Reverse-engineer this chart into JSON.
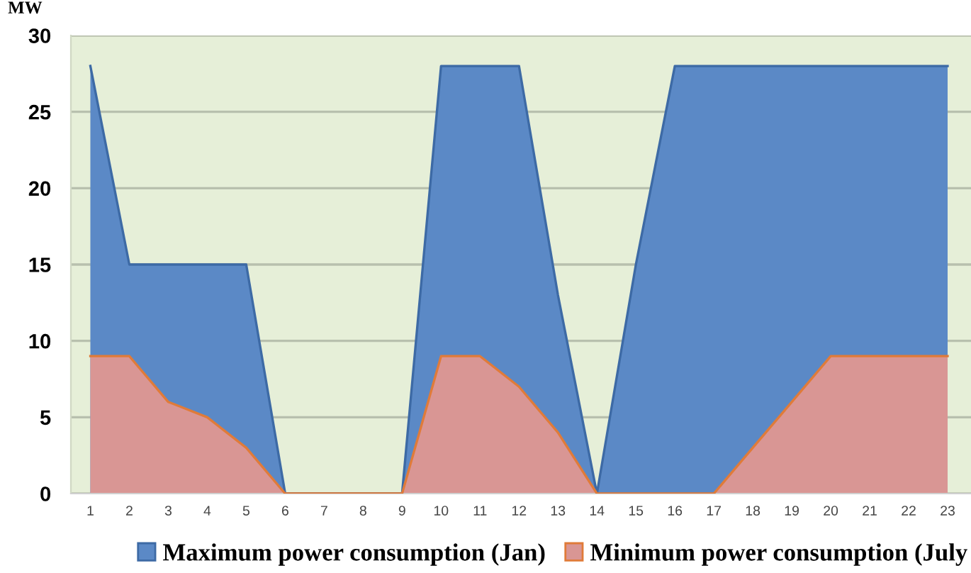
{
  "chart_data": {
    "type": "area",
    "ylabel": "MW",
    "x": [
      1,
      2,
      3,
      4,
      5,
      6,
      7,
      8,
      9,
      10,
      11,
      12,
      13,
      14,
      15,
      16,
      17,
      18,
      19,
      20,
      21,
      22,
      23
    ],
    "series": [
      {
        "name": "Maximum power consumption (Jan)",
        "color": "#5b89c6",
        "values": [
          28,
          15,
          15,
          15,
          15,
          0,
          0,
          0,
          0,
          28,
          28,
          28,
          13,
          0,
          15,
          28,
          28,
          28,
          28,
          28,
          28,
          28,
          28
        ]
      },
      {
        "name": "Minimum power consumption (July",
        "color": "#d99694",
        "values": [
          9,
          9,
          6,
          5,
          3,
          0,
          0,
          0,
          0,
          9,
          9,
          7,
          4,
          0,
          0,
          0,
          0,
          3,
          6,
          9,
          9,
          9,
          9
        ]
      }
    ],
    "xlim": [
      0.5,
      23.6
    ],
    "xticks": [
      1,
      2,
      3,
      4,
      5,
      6,
      7,
      8,
      9,
      10,
      11,
      12,
      13,
      14,
      15,
      16,
      17,
      18,
      19,
      20,
      21,
      22,
      23
    ],
    "ylim": [
      0,
      30
    ],
    "yticks": [
      0,
      5,
      10,
      15,
      20,
      25,
      30
    ],
    "grid": "y",
    "legend": "bottom"
  }
}
